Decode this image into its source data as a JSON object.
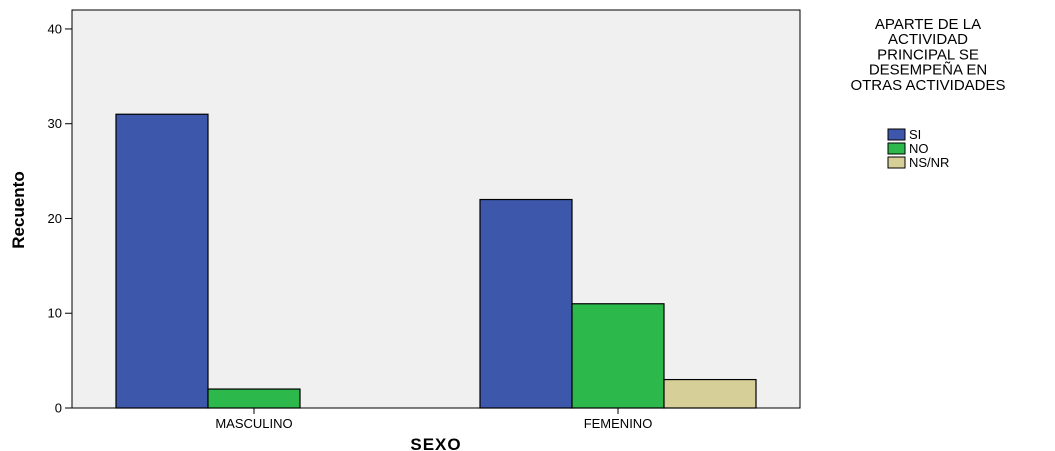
{
  "chart_data": {
    "type": "bar",
    "xlabel": "SEXO",
    "ylabel": "Recuento",
    "ylim": [
      0,
      42
    ],
    "yticks": [
      "0",
      "10",
      "20",
      "30",
      "40"
    ],
    "grid": false,
    "categories": [
      "MASCULINO",
      "FEMENINO"
    ],
    "legend": {
      "title_lines": [
        "APARTE DE LA",
        "ACTIVIDAD",
        "PRINCIPAL SE",
        "DESEMPEÑA EN",
        "OTRAS ACTIVIDADES"
      ],
      "placement": "right"
    },
    "series": [
      {
        "name": "SI",
        "color": "#3d57ab",
        "values": [
          31,
          22
        ]
      },
      {
        "name": "NO",
        "color": "#2db84b",
        "values": [
          2,
          11
        ]
      },
      {
        "name": "NS/NR",
        "color": "#d6cf98",
        "values": [
          0,
          3
        ]
      }
    ]
  }
}
